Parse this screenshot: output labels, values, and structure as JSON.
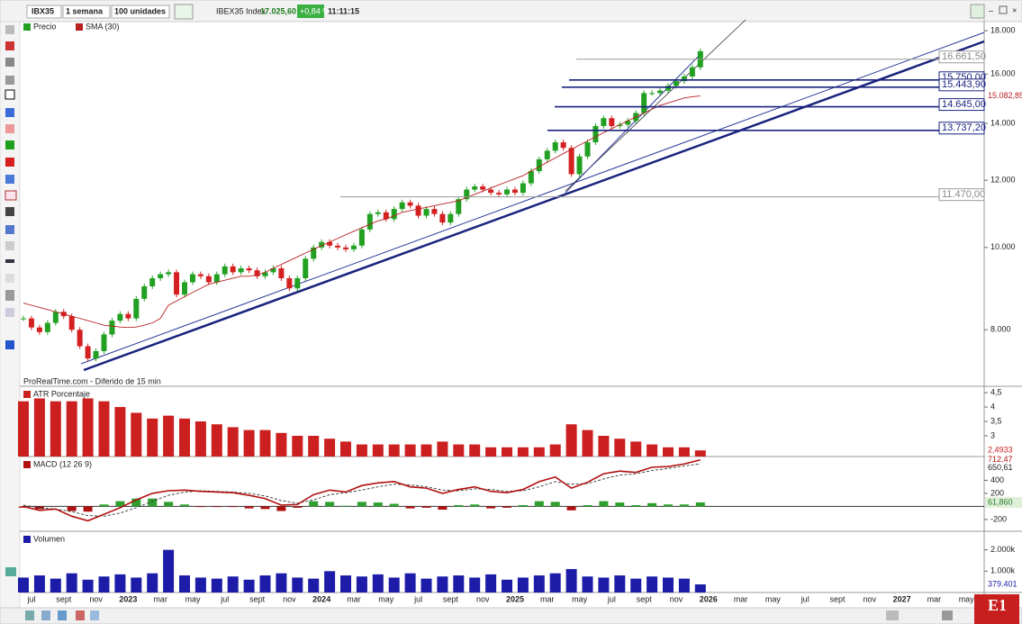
{
  "toolbar": {
    "symbol": "IBX35",
    "period": "1 semana",
    "units": "100 unidades",
    "instrument": "IBEX35 Index",
    "last": "17.025,60",
    "change": "+0,84 %",
    "time": "11:11:15"
  },
  "source": "ProRealTime.com - Diferido de 15 min",
  "date_axis": [
    "jul",
    "sept",
    "nov",
    "2023",
    "mar",
    "may",
    "jul",
    "sept",
    "nov",
    "2024",
    "mar",
    "may",
    "jul",
    "sept",
    "nov",
    "2025",
    "mar",
    "may",
    "jul",
    "sept",
    "nov",
    "2026",
    "mar",
    "may",
    "jul",
    "sept",
    "nov",
    "2027",
    "mar",
    "may"
  ],
  "chart_data": [
    {
      "type": "candlestick",
      "log_scale": true,
      "up_color": "#22a022",
      "down_color": "#d42020",
      "ylim": [
        6880,
        18540
      ],
      "yticks": [
        {
          "value": 18000,
          "label": "18.000"
        },
        {
          "value": 16000,
          "label": "16.000"
        },
        {
          "value": 14000,
          "label": "14.000"
        },
        {
          "value": 12000,
          "label": "12.000"
        },
        {
          "value": 10000,
          "label": "10.000"
        },
        {
          "value": 8000,
          "label": "8.000"
        }
      ],
      "series": [
        {
          "name": "Precio",
          "color": "#22a022",
          "values": [
            8250,
            8050,
            7950,
            8150,
            8400,
            8300,
            8000,
            7650,
            7400,
            7550,
            7900,
            8200,
            8350,
            8250,
            8700,
            9000,
            9200,
            9300,
            9350,
            8800,
            9100,
            9300,
            9250,
            9100,
            9300,
            9500,
            9350,
            9450,
            9400,
            9250,
            9350,
            9450,
            9200,
            8950,
            9200,
            9700,
            10000,
            10150,
            10050,
            10000,
            9950,
            10050,
            10500,
            10950,
            11000,
            10800,
            11100,
            11300,
            11200,
            10900,
            11100,
            10950,
            10700,
            10950,
            11400,
            11700,
            11800,
            11700,
            11600,
            11550,
            11700,
            11600,
            11900,
            12300,
            12700,
            13000,
            13300,
            13100,
            12200,
            12800,
            13300,
            13900,
            14200,
            13900,
            13950,
            14100,
            14400,
            15200,
            15200,
            15300,
            15500,
            15700,
            15900,
            16300,
            17025.6
          ]
        },
        {
          "name": "SMA (30)",
          "color": "#b82020",
          "last_label": "15.082,85",
          "values": [
            8600,
            8550,
            8500,
            8450,
            8400,
            8350,
            8300,
            8250,
            8200,
            8150,
            8100,
            8080,
            8060,
            8050,
            8060,
            8100,
            8150,
            8250,
            8550,
            8650,
            8750,
            8850,
            8950,
            9050,
            9100,
            9150,
            9200,
            9250,
            9250,
            9280,
            9350,
            9450,
            9550,
            9650,
            9750,
            9850,
            9950,
            10050,
            10150,
            10250,
            10350,
            10450,
            10550,
            10650,
            10750,
            10800,
            10900,
            11000,
            11050,
            11100,
            11150,
            11200,
            11250,
            11300,
            11350,
            11450,
            11550,
            11650,
            11750,
            11850,
            11950,
            12050,
            12150,
            12300,
            12450,
            12600,
            12750,
            12900,
            13050,
            13200,
            13350,
            13500,
            13650,
            13800,
            13950,
            14100,
            14250,
            14400,
            14550,
            14700,
            14800,
            14900,
            15000,
            15050,
            15082.85
          ]
        }
      ],
      "levels": [
        {
          "value": 16661.5,
          "label": "16.661,50",
          "color": "#9a9a9a"
        },
        {
          "value": 15750,
          "label": "15.750,00",
          "color": "#1a237e"
        },
        {
          "value": 15443.9,
          "label": "15.443,90",
          "color": "#1a237e"
        },
        {
          "value": 14645,
          "label": "14.645,00",
          "color": "#1a237e"
        },
        {
          "value": 13737.2,
          "label": "13.737,20",
          "color": "#1a237e"
        },
        {
          "value": 11470,
          "label": "11.470,00",
          "color": "#9a9a9a"
        }
      ]
    },
    {
      "type": "bar",
      "ylim": [
        2.28,
        4.69
      ],
      "yticks": [
        {
          "value": 4.5,
          "label": "4,5"
        },
        4,
        {
          "value": 3.5,
          "label": "3,5"
        },
        3
      ],
      "series": [
        {
          "name": "ATR Porcentaje",
          "color": "#cc1f1f",
          "last_label": "2,4933",
          "values": [
            4.2,
            4.3,
            4.2,
            4.2,
            4.3,
            4.2,
            4.0,
            3.8,
            3.6,
            3.7,
            3.6,
            3.5,
            3.4,
            3.3,
            3.2,
            3.2,
            3.1,
            3.0,
            3.0,
            2.9,
            2.8,
            2.7,
            2.7,
            2.7,
            2.7,
            2.7,
            2.8,
            2.7,
            2.7,
            2.6,
            2.6,
            2.6,
            2.6,
            2.7,
            3.4,
            3.2,
            3.0,
            2.9,
            2.8,
            2.7,
            2.6,
            2.6,
            2.4933
          ]
        }
      ]
    },
    {
      "type": "macd",
      "ylim": [
        -380,
        750
      ],
      "yticks": [
        400,
        200,
        -200
      ],
      "series": [
        {
          "name": "MACD (12 26 9)",
          "color": "#b01010",
          "last_label": "712,47",
          "values": [
            0,
            -60,
            -40,
            -150,
            -220,
            -120,
            -20,
            100,
            200,
            240,
            250,
            230,
            220,
            210,
            170,
            120,
            20,
            30,
            180,
            250,
            220,
            320,
            360,
            380,
            300,
            280,
            200,
            260,
            300,
            230,
            210,
            260,
            380,
            450,
            280,
            370,
            500,
            540,
            520,
            600,
            610,
            650,
            712.47
          ]
        }
      ],
      "signal": {
        "color": "#333333",
        "last_label": "650,61",
        "values": [
          20,
          -20,
          -40,
          -80,
          -140,
          -150,
          -100,
          -20,
          80,
          170,
          220,
          240,
          230,
          220,
          200,
          160,
          90,
          50,
          100,
          180,
          210,
          250,
          300,
          340,
          330,
          300,
          250,
          240,
          270,
          260,
          230,
          240,
          300,
          380,
          340,
          350,
          420,
          480,
          500,
          550,
          580,
          620,
          650.61
        ]
      },
      "histogram": {
        "up_color": "#2e9e2e",
        "down_color": "#b01010",
        "last_label": "61,860",
        "values": [
          -20,
          -40,
          0,
          -70,
          -80,
          30,
          80,
          120,
          120,
          70,
          30,
          -10,
          -10,
          -10,
          -30,
          -40,
          -70,
          -20,
          80,
          70,
          10,
          70,
          60,
          40,
          -30,
          -20,
          -50,
          20,
          30,
          -30,
          -20,
          20,
          80,
          70,
          -60,
          20,
          80,
          60,
          20,
          50,
          30,
          30,
          61.86
        ]
      }
    },
    {
      "type": "bar",
      "ylim": [
        0,
        2830000
      ],
      "yticks": [
        {
          "value": 2000000,
          "label": "2.000k"
        },
        {
          "value": 1000000,
          "label": "1.000k"
        }
      ],
      "series": [
        {
          "name": "Volumen",
          "color": "#1c1ca8",
          "last_label": "379.401",
          "values": [
            700000,
            800000,
            650000,
            900000,
            600000,
            750000,
            850000,
            700000,
            900000,
            2000000,
            800000,
            700000,
            650000,
            750000,
            600000,
            800000,
            900000,
            700000,
            650000,
            1000000,
            800000,
            750000,
            850000,
            700000,
            900000,
            650000,
            750000,
            800000,
            700000,
            850000,
            600000,
            700000,
            800000,
            900000,
            1100000,
            750000,
            700000,
            800000,
            650000,
            750000,
            700000,
            650000,
            379401
          ]
        }
      ]
    }
  ]
}
